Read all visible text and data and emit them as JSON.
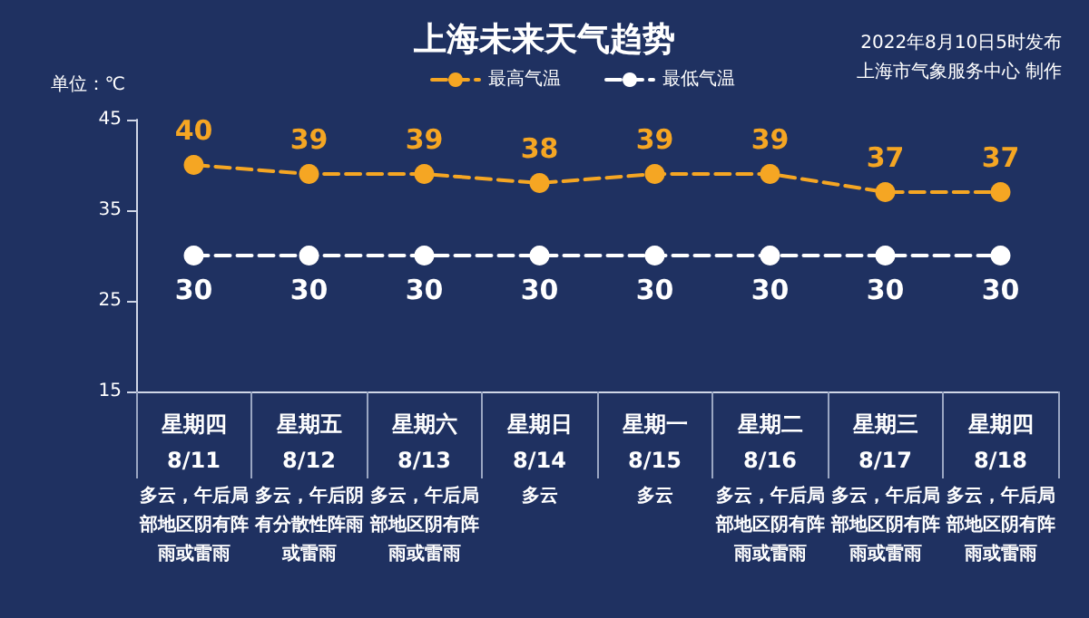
{
  "chart_data": {
    "type": "line",
    "title": "上海未来天气趋势",
    "subtitle": "2022年8月10日5时发布",
    "ylabel": "单位：℃",
    "categories": [
      "星期四\n8/11",
      "星期五\n8/12",
      "星期六\n8/13",
      "星期日\n8/14",
      "星期一\n8/15",
      "星期二\n8/16",
      "星期三\n8/17",
      "星期四\n8/18"
    ],
    "series": [
      {
        "name": "最高气温",
        "color": "#f5a623",
        "values": [
          40,
          39,
          39,
          38,
          39,
          39,
          37,
          37
        ]
      },
      {
        "name": "最低气温",
        "color": "#ffffff",
        "values": [
          30,
          30,
          30,
          30,
          30,
          30,
          30,
          30
        ]
      }
    ],
    "ylim": [
      15,
      45
    ],
    "yticks": [
      15,
      25,
      35,
      45
    ],
    "grid": false,
    "legend": "top right",
    "marker": "circle",
    "line_style": "dashed",
    "data_labels": true,
    "annotations": [
      "上海市气象服务中心 制作",
      "多云，午后局部地区阴有阵雨或雷雨",
      "多云，午后阴有分散性阵雨或雷雨",
      "多云，午后局部地区阴有阵雨或雷雨",
      "多云",
      "多云",
      "多云，午后局部地区阴有阵雨或雷雨",
      "多云，午后局部地区阴有阵雨或雷雨",
      "多云，午后局部地区阴有阵雨或雷雨"
    ]
  }
}
